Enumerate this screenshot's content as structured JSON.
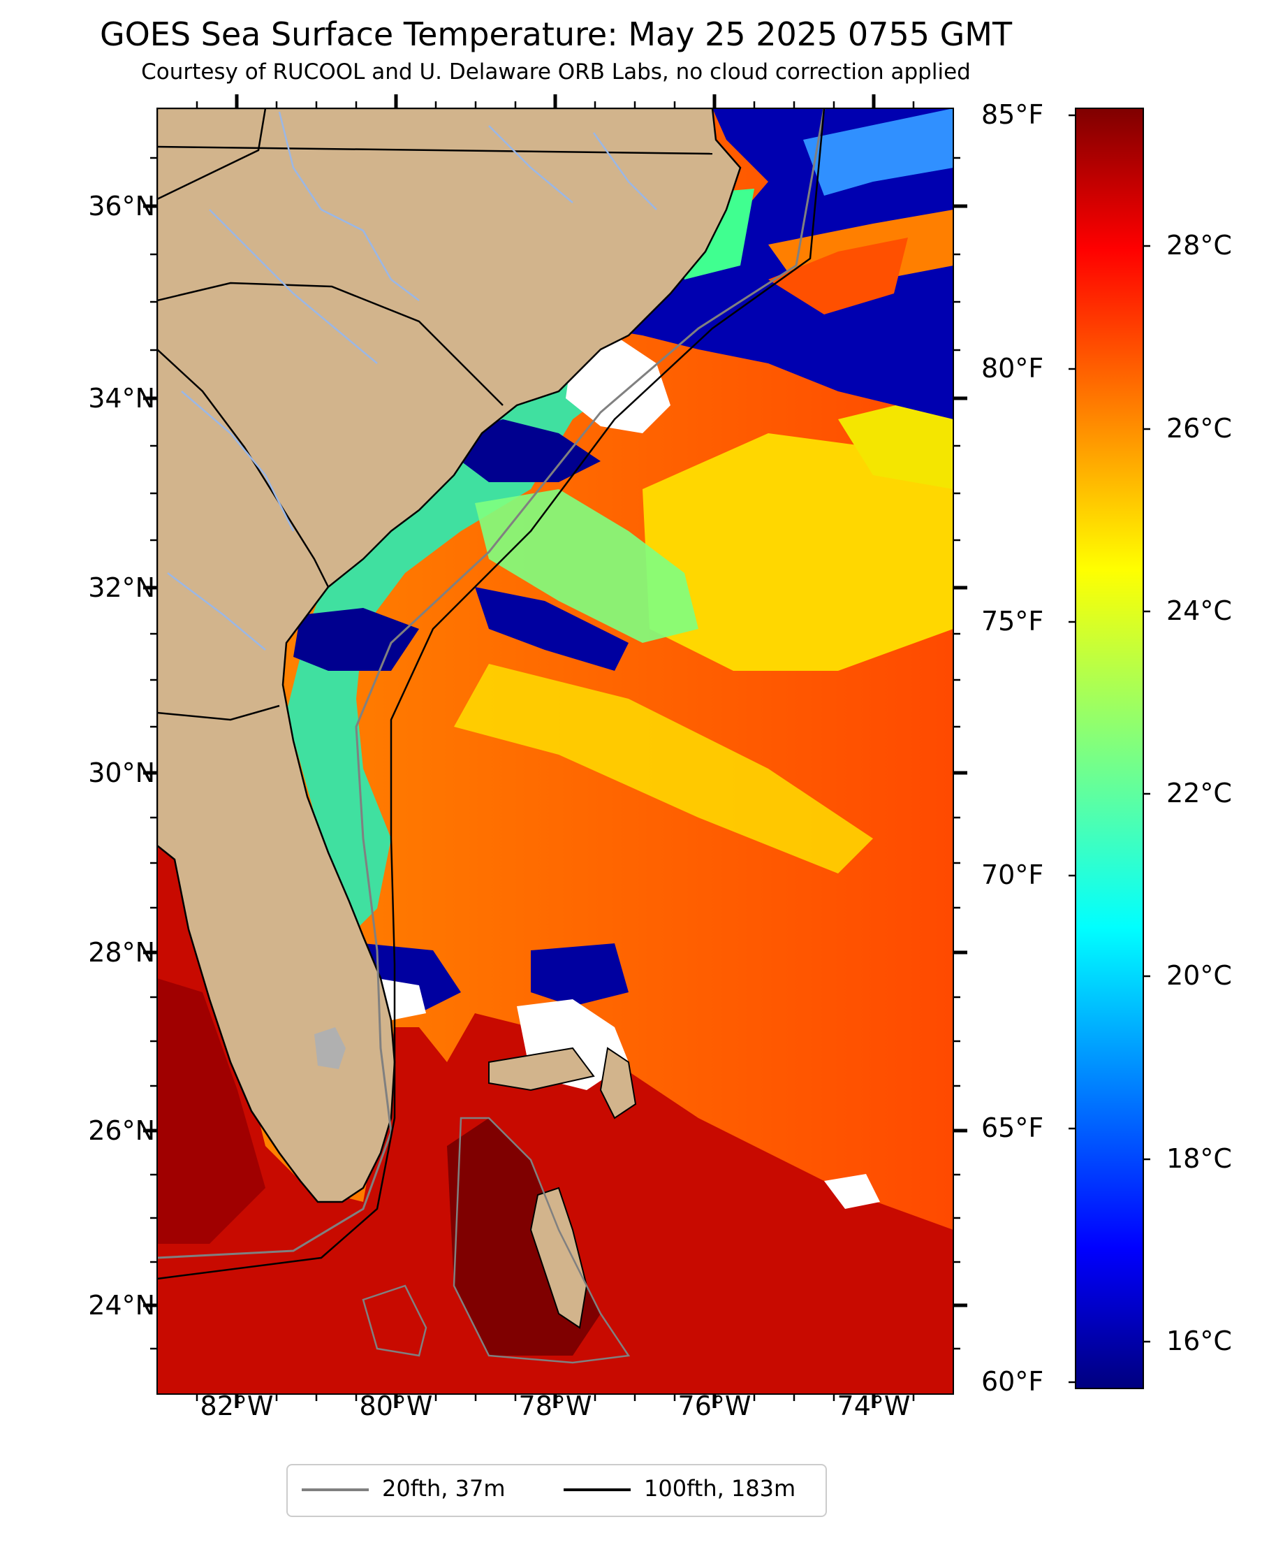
{
  "title": "GOES Sea Surface Temperature: May 25 2025 0755 GMT",
  "subtitle": "Courtesy of RUCOOL and U. Delaware ORB Labs, no cloud correction applied",
  "map": {
    "extent": {
      "lon": [
        -83.0,
        -73.0
      ],
      "lat": [
        23.2,
        37.0
      ]
    },
    "lat_ticks": [
      "36°N",
      "34°N",
      "32°N",
      "30°N",
      "28°N",
      "26°N",
      "24°N"
    ],
    "lon_ticks": [
      "82°W",
      "80°W",
      "78°W",
      "76°W",
      "74°W"
    ],
    "colors": {
      "land": "#d2b48c",
      "cloud_mask": "#ffffff",
      "lake": "#b0b0b0",
      "river": "#9ab7e6",
      "border": "#000000"
    }
  },
  "colorbar": {
    "colormap": "jet",
    "range_c": [
      15.6,
      29.4
    ],
    "celsius_ticks": [
      "28°C",
      "26°C",
      "24°C",
      "22°C",
      "20°C",
      "18°C",
      "16°C"
    ],
    "fahrenheit_ticks": [
      "85°F",
      "80°F",
      "75°F",
      "70°F",
      "65°F",
      "60°F"
    ]
  },
  "legend": {
    "items": [
      {
        "label": "20fth, 37m",
        "color": "#808080"
      },
      {
        "label": "100fth, 183m",
        "color": "#000000"
      }
    ]
  }
}
